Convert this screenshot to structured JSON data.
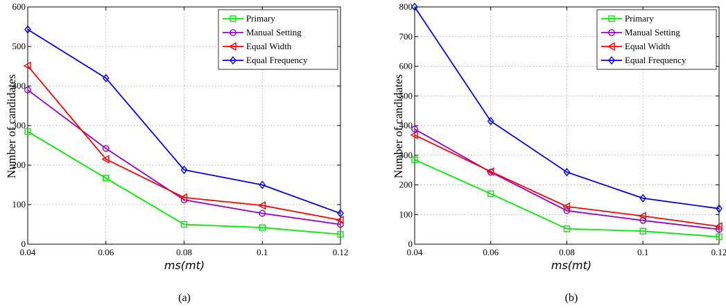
{
  "series_styles": [
    {
      "color": "#00ee00",
      "marker": "square"
    },
    {
      "color": "#9400d3",
      "marker": "circle"
    },
    {
      "color": "#ff0000",
      "marker": "triangle-left"
    },
    {
      "color": "#0000ee",
      "marker": "diamond"
    }
  ],
  "chart_data": [
    {
      "type": "line",
      "caption": "(a)",
      "xlabel": "ms(mt)",
      "ylabel": "Number of candidates",
      "x": [
        0.04,
        0.06,
        0.08,
        0.1,
        0.12
      ],
      "x_tick_labels": [
        "0.04",
        "0.06",
        "0.08",
        "0.1",
        "0.12"
      ],
      "xlim": [
        0.04,
        0.12
      ],
      "ylim": [
        0,
        600
      ],
      "y_ticks": [
        0,
        100,
        200,
        300,
        400,
        500,
        600
      ],
      "grid": true,
      "legend_position": "top-right",
      "series": [
        {
          "name": "Primary",
          "values": [
            285,
            167,
            50,
            42,
            25
          ]
        },
        {
          "name": "Manual Setting",
          "values": [
            390,
            242,
            112,
            78,
            50
          ]
        },
        {
          "name": "Equal Width",
          "values": [
            451,
            215,
            118,
            98,
            61
          ]
        },
        {
          "name": "Equal Frequency",
          "values": [
            543,
            420,
            188,
            150,
            78
          ]
        }
      ]
    },
    {
      "type": "line",
      "caption": "(b)",
      "xlabel": "ms(mt)",
      "ylabel": "Number of candidates",
      "x": [
        0.04,
        0.06,
        0.08,
        0.1,
        0.12
      ],
      "x_tick_labels": [
        "0.04",
        "0.06",
        "0.08",
        "0.1",
        "0.12"
      ],
      "xlim": [
        0.04,
        0.12
      ],
      "ylim": [
        0,
        800
      ],
      "y_ticks": [
        0,
        100,
        200,
        300,
        400,
        500,
        600,
        700,
        800
      ],
      "grid": true,
      "legend_position": "top-right",
      "series": [
        {
          "name": "Primary",
          "values": [
            285,
            170,
            52,
            44,
            25
          ]
        },
        {
          "name": "Manual Setting",
          "values": [
            388,
            243,
            113,
            80,
            50
          ]
        },
        {
          "name": "Equal Width",
          "values": [
            368,
            245,
            127,
            95,
            60
          ]
        },
        {
          "name": "Equal Frequency",
          "values": [
            800,
            415,
            243,
            155,
            120
          ]
        }
      ]
    }
  ]
}
